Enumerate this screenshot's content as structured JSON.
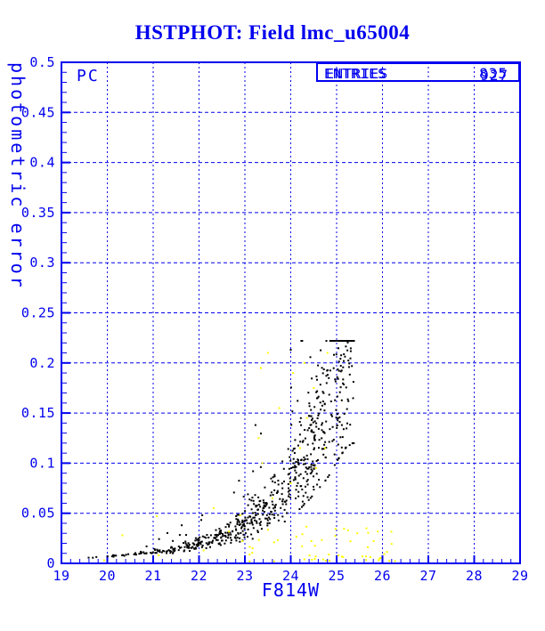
{
  "title": "HSTPHOT: Field lmc_u65004",
  "colors": {
    "accent": "#0000EE",
    "background": "#FFFFFF",
    "points_primary": "#000000",
    "points_secondary": "#FFFF00"
  },
  "plot": {
    "detector_label": "PC",
    "stats_box": {
      "label": "ENTRIES",
      "values": [
        "835",
        "927"
      ],
      "note": "two overprinted entry counts"
    },
    "x_axis": {
      "title": "F814W",
      "range": [
        19,
        29
      ],
      "tick_values": [
        19,
        20,
        21,
        22,
        23,
        24,
        25,
        26,
        27,
        28,
        29
      ],
      "tick_labels": [
        "19",
        "20",
        "21",
        "22",
        "23",
        "24",
        "25",
        "26",
        "27",
        "28",
        "29"
      ],
      "minor_step": 0.2
    },
    "y_axis": {
      "title": "photometric error",
      "range": [
        0,
        0.5
      ],
      "tick_values": [
        0,
        0.05,
        0.1,
        0.15,
        0.2,
        0.25,
        0.3,
        0.35,
        0.4,
        0.45,
        0.5
      ],
      "tick_labels": [
        "0",
        "0.05",
        "0.1",
        "0.15",
        "0.2",
        "0.25",
        "0.3",
        "0.35",
        "0.4",
        "0.45",
        "0.5"
      ],
      "minor_step": 0.01
    },
    "grid": {
      "style": "dashed",
      "vertical_at": [
        20,
        21,
        22,
        23,
        24,
        25,
        26,
        27,
        28
      ],
      "horizontal_at": [
        0.05,
        0.1,
        0.15,
        0.2,
        0.25,
        0.3,
        0.35,
        0.4,
        0.45
      ]
    }
  },
  "chart_data": {
    "type": "scatter",
    "title": "HSTPHOT: Field lmc_u65004",
    "xlabel": "F814W",
    "ylabel": "photometric error",
    "xlim": [
      19,
      29
    ],
    "ylim": [
      0,
      0.5
    ],
    "grid": true,
    "legend": null,
    "series": [
      {
        "name": "PC chip stars (black)",
        "color": "#000000",
        "marker": "2px square",
        "approx_count": 720,
        "description": "Photometric error grows exponentially with magnitude; tight locus from (19.5, 0.005) to detection limit near (25.3, 0.22); sparse secondary branch ~2x above locus for 21<m<24.",
        "trend_points": [
          [
            19.4,
            0.005
          ],
          [
            20.0,
            0.007
          ],
          [
            21.0,
            0.011
          ],
          [
            22.0,
            0.02
          ],
          [
            22.5,
            0.027
          ],
          [
            23.0,
            0.04
          ],
          [
            23.5,
            0.055
          ],
          [
            24.0,
            0.085
          ],
          [
            24.5,
            0.125
          ],
          [
            24.8,
            0.155
          ],
          [
            25.0,
            0.185
          ],
          [
            25.2,
            0.21
          ],
          [
            25.35,
            0.218
          ]
        ],
        "x_range": [
          19.4,
          25.38
        ],
        "model": {
          "seed": 1371205,
          "faint_bias_exp": 0.42,
          "rel_scatter_base": 0.04,
          "rel_scatter_slope": 0.045,
          "upper_branch_prob": 0.055,
          "upper_branch_range": [
            20.6,
            24.3
          ],
          "upper_branch_factor": [
            1.6,
            2.4
          ],
          "y_min": 0.002,
          "y_max": 0.222
        }
      },
      {
        "name": "flagged detections (yellow)",
        "color": "#FFFF00",
        "marker": "2px square",
        "approx_count": 77,
        "description": "Mostly low-error points scattered along the bottom between F814W 22.3-26.3 (err < 0.04), plus a few mixed into the black cloud.",
        "band": {
          "x_range": [
            22.3,
            26.35
          ],
          "y_range": [
            0.002,
            0.037
          ],
          "count": 50,
          "seed": 424299,
          "faint_bias_exp": 0.8,
          "low_bias_exp": 1.4
        },
        "points": [
          [
            19.93,
            0.003
          ],
          [
            20.33,
            0.028
          ],
          [
            21.08,
            0.047
          ],
          [
            21.12,
            0.008
          ],
          [
            22.1,
            0.013
          ],
          [
            22.32,
            0.055
          ],
          [
            22.9,
            0.048
          ],
          [
            23.1,
            0.002
          ],
          [
            23.3,
            0.125
          ],
          [
            23.35,
            0.195
          ],
          [
            23.38,
            0.1
          ],
          [
            23.5,
            0.21
          ],
          [
            23.6,
            0.065
          ],
          [
            23.75,
            0.155
          ],
          [
            24.0,
            0.08
          ],
          [
            24.05,
            0.19
          ],
          [
            24.2,
            0.115
          ],
          [
            24.3,
            0.2
          ],
          [
            24.35,
            0.145
          ],
          [
            24.5,
            0.175
          ],
          [
            24.55,
            0.095
          ],
          [
            24.75,
            0.115
          ],
          [
            24.8,
            0.21
          ],
          [
            25.25,
            0.033
          ],
          [
            25.3,
            0.022
          ],
          [
            25.45,
            0.03
          ],
          [
            25.65,
            0.035
          ]
        ]
      }
    ]
  }
}
